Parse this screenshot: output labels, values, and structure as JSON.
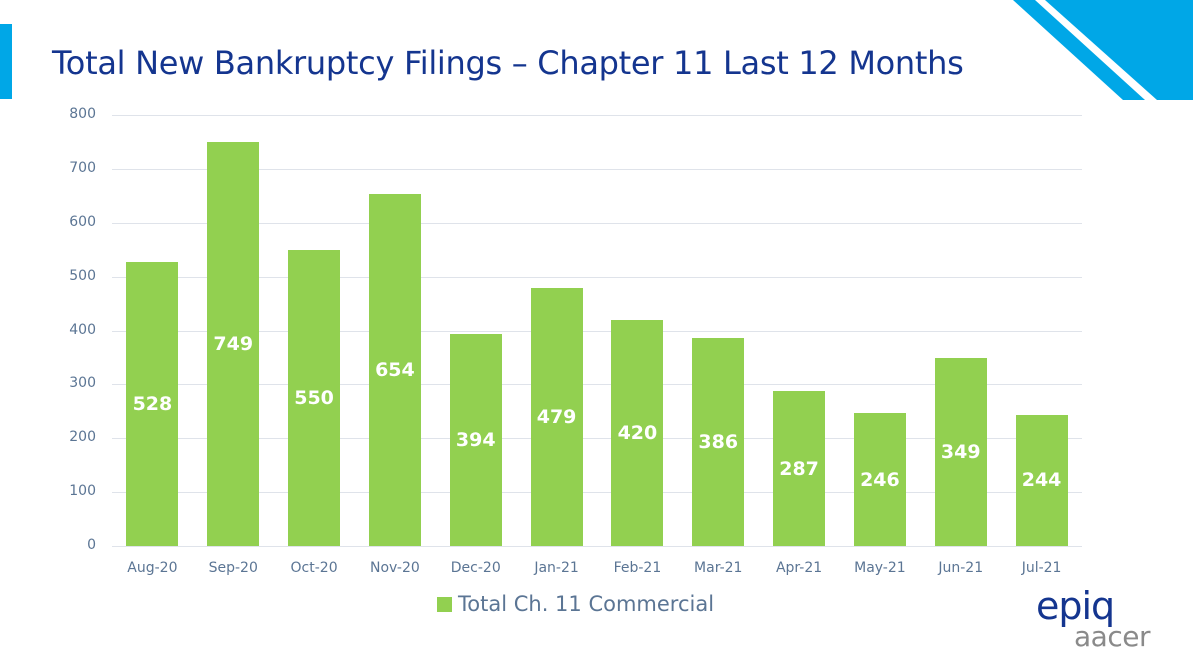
{
  "header": {
    "title": "Total New Bankruptcy Filings – Chapter 11 Last 12 Months",
    "accent_color": "#00a7e7",
    "title_color": "#14358f"
  },
  "chart_data": {
    "type": "bar",
    "title": "Total New Bankruptcy Filings – Chapter 11 Last 12 Months",
    "xlabel": "",
    "ylabel": "",
    "categories": [
      "Aug-20",
      "Sep-20",
      "Oct-20",
      "Nov-20",
      "Dec-20",
      "Jan-21",
      "Feb-21",
      "Mar-21",
      "Apr-21",
      "May-21",
      "Jun-21",
      "Jul-21"
    ],
    "series": [
      {
        "name": "Total Ch. 11 Commercial",
        "color": "#92d050",
        "values": [
          528,
          749,
          550,
          654,
          394,
          479,
          420,
          386,
          287,
          246,
          349,
          244
        ]
      }
    ],
    "values": [
      528,
      749,
      550,
      654,
      394,
      479,
      420,
      386,
      287,
      246,
      349,
      244
    ],
    "ylim": [
      0,
      800
    ],
    "yticks": [
      "0",
      "100",
      "200",
      "300",
      "400",
      "500",
      "600",
      "700",
      "800"
    ],
    "grid": true,
    "legend_position": "bottom",
    "data_labels": true
  },
  "legend": {
    "label": "Total Ch. 11 Commercial"
  },
  "logo": {
    "brand": "epiq",
    "sub": "aacer"
  }
}
